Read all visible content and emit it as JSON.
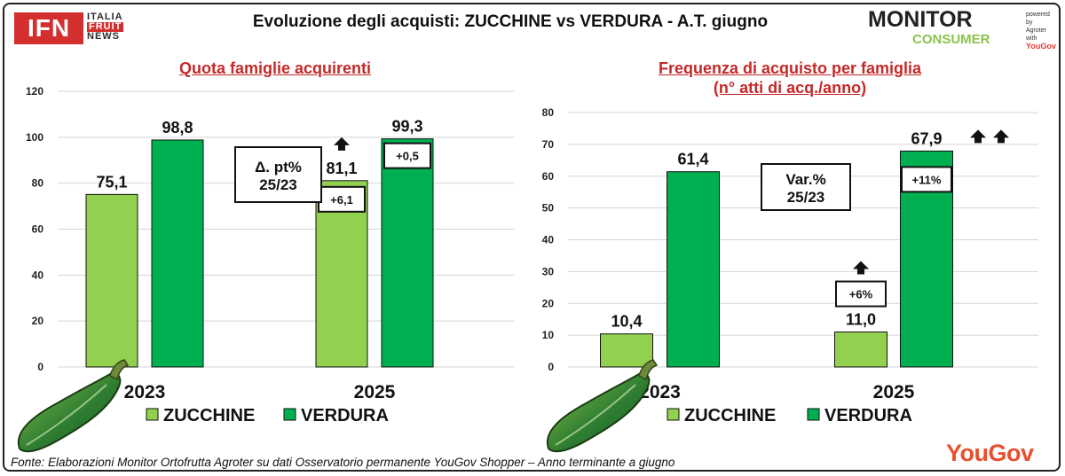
{
  "header": {
    "title": "Evoluzione degli acquisti: ZUCCHINE vs VERDURA  - A.T. giugno",
    "ifn_logo": "IFN",
    "ifn_words": [
      "ITALIA",
      "FRUIT",
      "NEWS"
    ],
    "monitor_logo": "MONITOR",
    "monitor_sub": "CONSUMER",
    "monitor_small": [
      "powered by",
      "Agroter",
      "with",
      "YouGov"
    ]
  },
  "footer": {
    "source": "Fonte: Elaborazioni Monitor Ortofrutta Agroter su dati Osservatorio permanente YouGov Shopper  – Anno terminante a giugno",
    "yougov_logo": "YouGov"
  },
  "colors": {
    "zucchine": "#92d050",
    "verdura": "#00b050",
    "title_red": "#c62828",
    "arrow": "#111111"
  },
  "icons": [
    "zucchini-icon",
    "up-arrow-icon"
  ],
  "chart_data": [
    {
      "type": "bar",
      "title": "Quota famiglie acquirenti",
      "categories": [
        "2023",
        "2025"
      ],
      "series": [
        {
          "name": "ZUCCHINE",
          "values": [
            75.1,
            81.1
          ],
          "labels": [
            "75,1",
            "81,1"
          ]
        },
        {
          "name": "VERDURA",
          "values": [
            98.8,
            99.3
          ],
          "labels": [
            "98,8",
            "99,3"
          ]
        }
      ],
      "ylim": [
        0,
        120
      ],
      "yticks": [
        0,
        20,
        40,
        60,
        80,
        100,
        120
      ],
      "grid": true,
      "legend": "bottom",
      "annotation": [
        "Δ. pt%",
        "25/23"
      ],
      "changes": {
        "ZUCCHINE": {
          "label": "+6,1",
          "arrows": 1
        },
        "VERDURA": {
          "label": "+0,5",
          "arrows": 0
        }
      }
    },
    {
      "type": "bar",
      "title": "Frequenza di acquisto per famiglia",
      "subtitle": "(n° atti di acq./anno)",
      "categories": [
        "2023",
        "2025"
      ],
      "series": [
        {
          "name": "ZUCCHINE",
          "values": [
            10.4,
            11.0
          ],
          "labels": [
            "10,4",
            "11,0"
          ]
        },
        {
          "name": "VERDURA",
          "values": [
            61.4,
            67.9
          ],
          "labels": [
            "61,4",
            "67,9"
          ]
        }
      ],
      "ylim": [
        0,
        80
      ],
      "yticks": [
        0,
        10,
        20,
        30,
        40,
        50,
        60,
        70,
        80
      ],
      "grid": true,
      "legend": "bottom",
      "annotation": [
        "Var.%",
        "25/23"
      ],
      "changes": {
        "ZUCCHINE": {
          "label": "+6%",
          "arrows": 1
        },
        "VERDURA": {
          "label": "+11%",
          "arrows": 2
        }
      }
    }
  ]
}
